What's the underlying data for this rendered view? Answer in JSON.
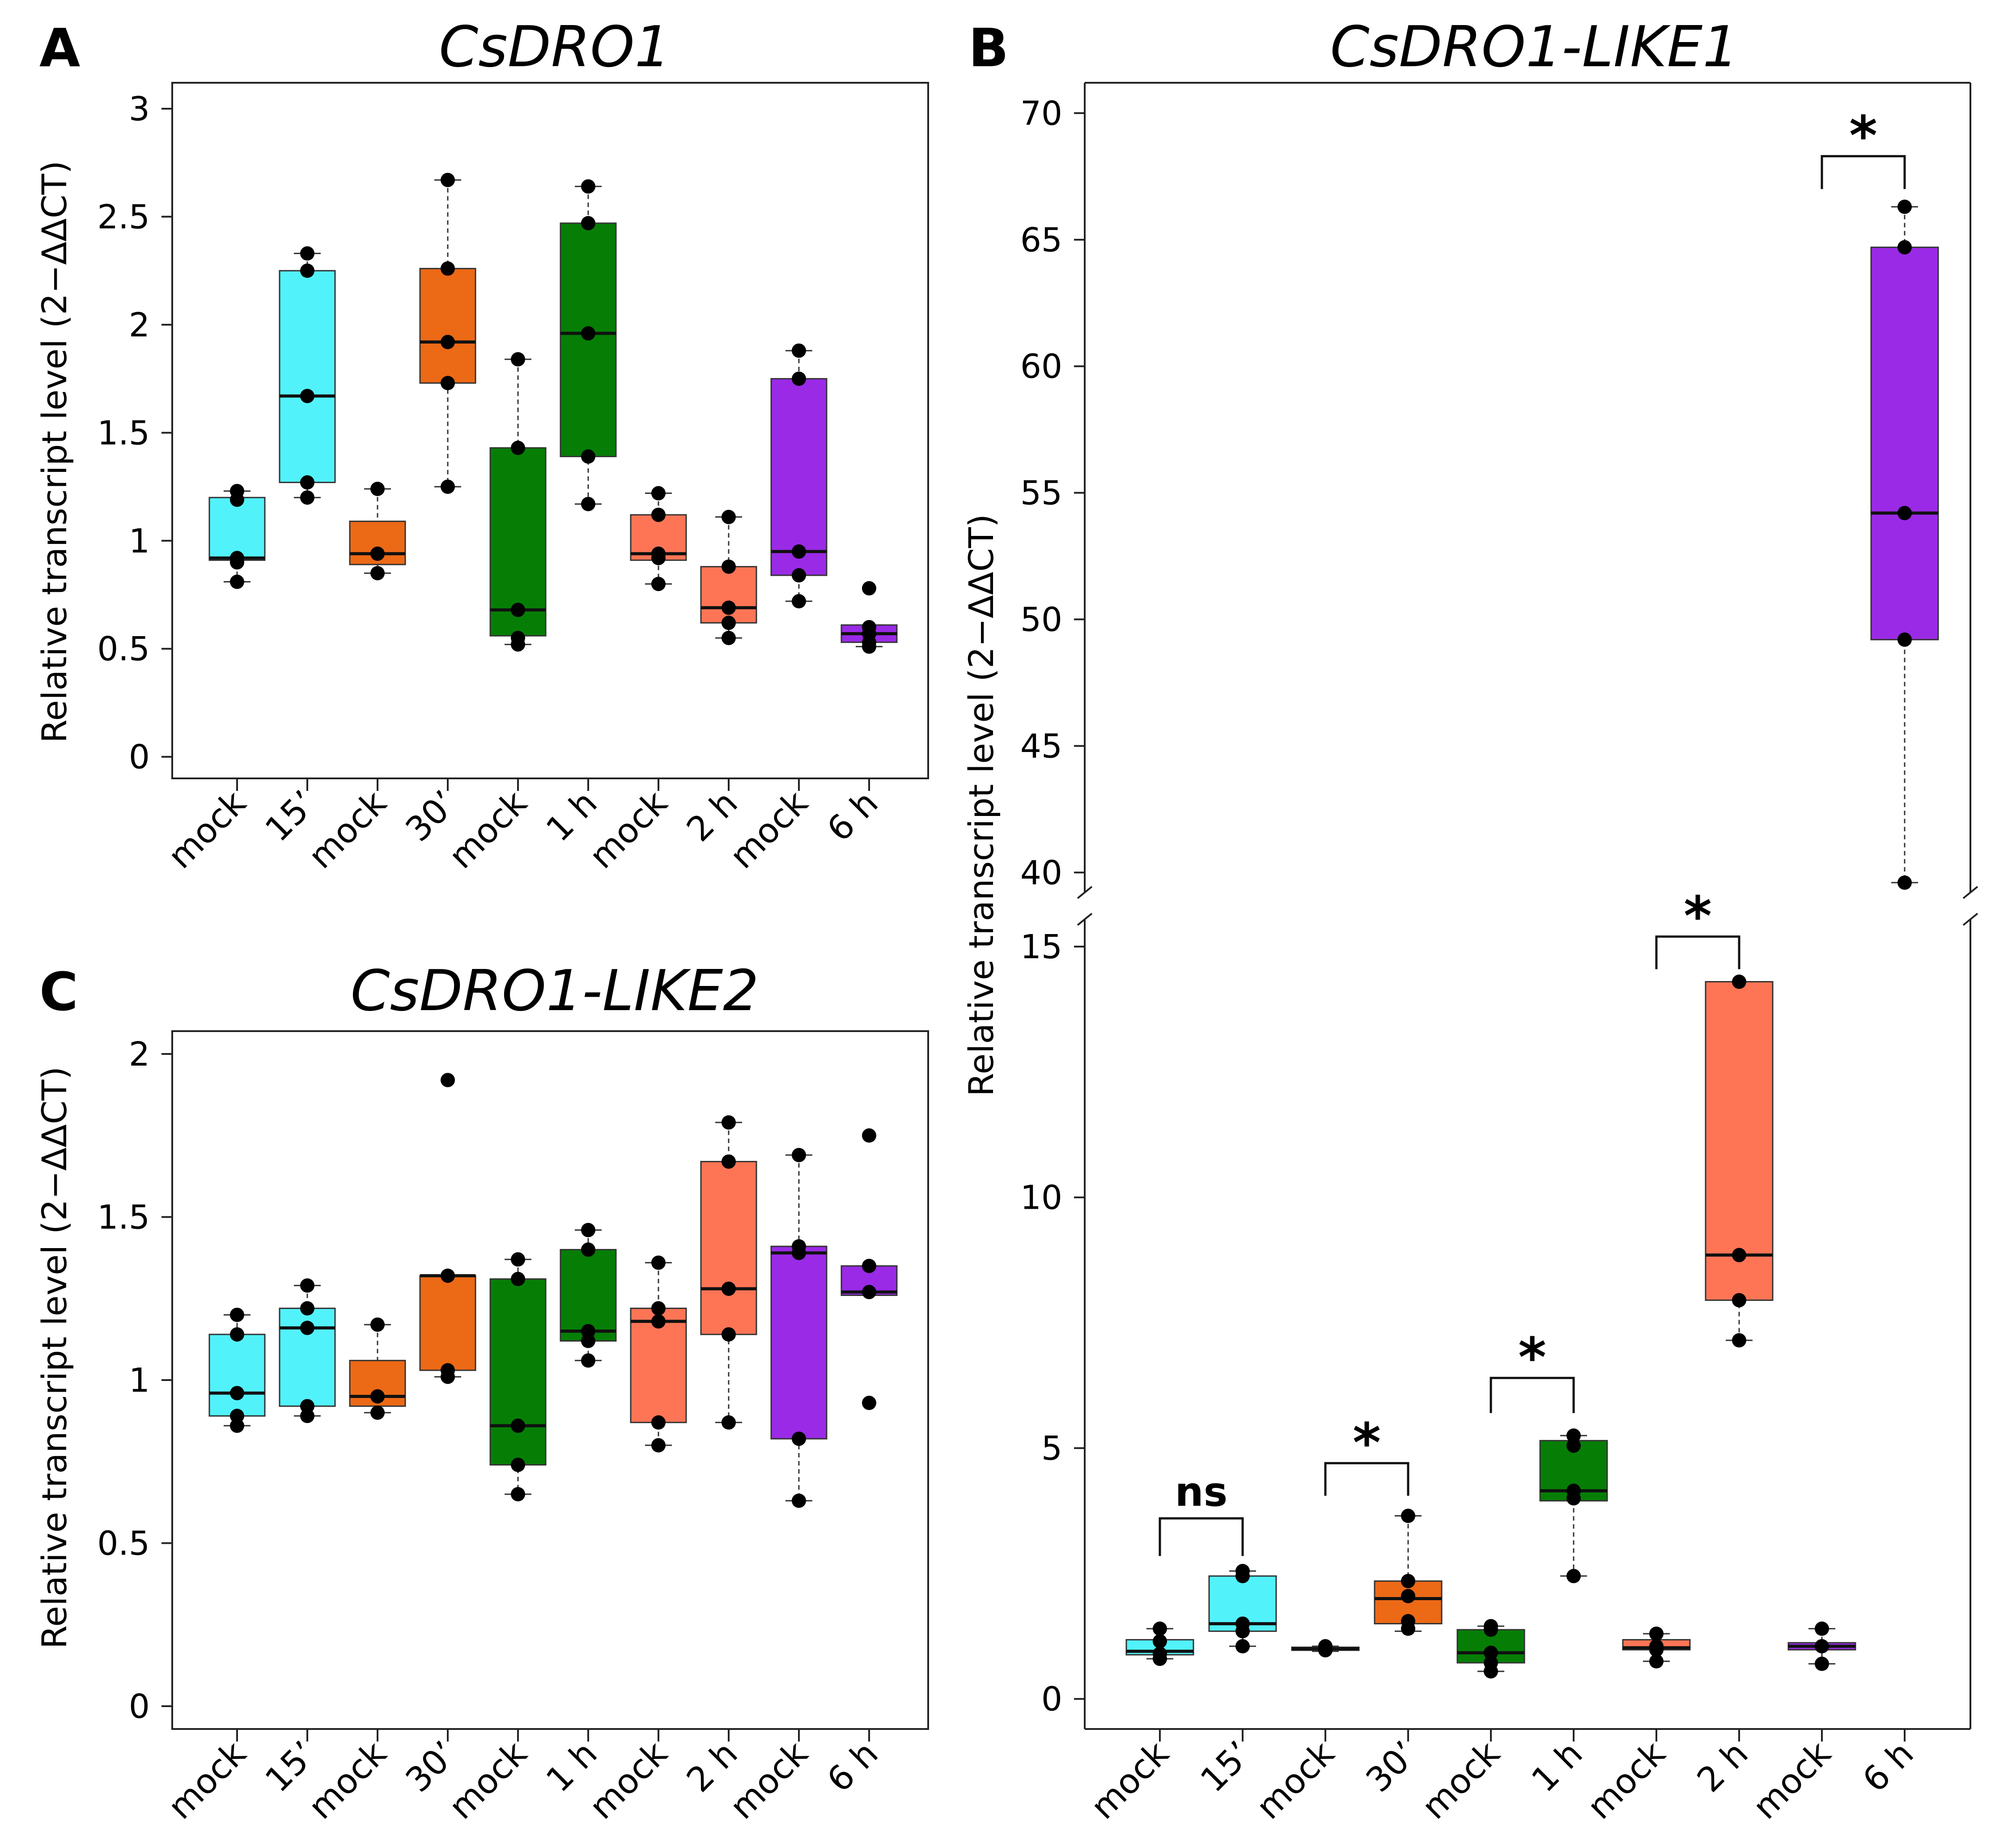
{
  "figure": {
    "panel_labels": [
      "A",
      "B",
      "C"
    ]
  },
  "colors": {
    "15’": "#52f2fb",
    "30’": "#ec6916",
    "1 h": "#067e06",
    "2 h": "#fe7556",
    "6 h": "#9a2ae6",
    "outline": "#333333",
    "point": "#000000"
  },
  "chart_data": [
    {
      "panel": "A",
      "type": "box",
      "title": "CsDRO1",
      "ylabel": "Relative transcript level (2−ΔΔCT)",
      "ylim": [
        -0.1,
        3.12
      ],
      "yticks": [
        0,
        0.5,
        1,
        1.5,
        2,
        2.5,
        3
      ],
      "ytick_labels": [
        "0",
        "0.5",
        "1",
        "1.5",
        "2",
        "2.5",
        "3"
      ],
      "categories": [
        "mock",
        "15’",
        "mock",
        "30’",
        "mock",
        "1 h",
        "mock",
        "2 h",
        "mock",
        "6 h"
      ],
      "groups": [
        "15’",
        "15’",
        "30’",
        "30’",
        "1 h",
        "1 h",
        "2 h",
        "2 h",
        "6 h",
        "6 h"
      ],
      "boxes": [
        {
          "q1": 0.91,
          "median": 0.92,
          "q3": 1.2,
          "whisker_low": 0.81,
          "whisker_high": 1.23,
          "points": [
            0.81,
            0.9,
            0.92,
            1.19,
            1.23
          ]
        },
        {
          "q1": 1.27,
          "median": 1.67,
          "q3": 2.25,
          "whisker_low": 1.2,
          "whisker_high": 2.33,
          "points": [
            1.2,
            1.27,
            1.67,
            2.25,
            2.33
          ]
        },
        {
          "q1": 0.89,
          "median": 0.94,
          "q3": 1.09,
          "whisker_low": 0.85,
          "whisker_high": 1.24,
          "points": [
            0.85,
            0.94,
            1.24
          ]
        },
        {
          "q1": 1.73,
          "median": 1.92,
          "q3": 2.26,
          "whisker_low": 1.25,
          "whisker_high": 2.67,
          "points": [
            1.25,
            1.73,
            1.92,
            2.26,
            2.67
          ]
        },
        {
          "q1": 0.56,
          "median": 0.68,
          "q3": 1.43,
          "whisker_low": 0.52,
          "whisker_high": 1.84,
          "points": [
            0.52,
            0.55,
            0.68,
            1.43,
            1.84
          ]
        },
        {
          "q1": 1.39,
          "median": 1.96,
          "q3": 2.47,
          "whisker_low": 1.17,
          "whisker_high": 2.64,
          "points": [
            1.17,
            1.39,
            1.96,
            2.47,
            2.64
          ]
        },
        {
          "q1": 0.91,
          "median": 0.94,
          "q3": 1.12,
          "whisker_low": 0.8,
          "whisker_high": 1.22,
          "points": [
            0.8,
            0.92,
            0.94,
            1.12,
            1.22
          ]
        },
        {
          "q1": 0.62,
          "median": 0.69,
          "q3": 0.88,
          "whisker_low": 0.55,
          "whisker_high": 1.11,
          "points": [
            0.55,
            0.62,
            0.69,
            0.88,
            1.11
          ]
        },
        {
          "q1": 0.84,
          "median": 0.95,
          "q3": 1.75,
          "whisker_low": 0.72,
          "whisker_high": 1.88,
          "points": [
            0.72,
            0.84,
            0.95,
            1.75,
            1.88
          ]
        },
        {
          "q1": 0.53,
          "median": 0.57,
          "q3": 0.61,
          "whisker_low": 0.51,
          "whisker_high": 0.61,
          "points": [
            0.51,
            0.53,
            0.57,
            0.6,
            0.78
          ]
        }
      ]
    },
    {
      "panel": "B",
      "type": "box",
      "title": "CsDRO1-LIKE1",
      "ylabel": "Relative transcript level (2−ΔΔCT)",
      "broken_axis": true,
      "upper_ylim": [
        39.3,
        71.2
      ],
      "upper_yticks": [
        40,
        45,
        50,
        55,
        60,
        65,
        70
      ],
      "upper_ytick_labels": [
        "40",
        "45",
        "50",
        "55",
        "60",
        "65",
        "70"
      ],
      "lower_ylim": [
        -0.6,
        15.5
      ],
      "lower_yticks": [
        0,
        5,
        10,
        15
      ],
      "lower_ytick_labels": [
        "0",
        "5",
        "10",
        "15"
      ],
      "categories": [
        "mock",
        "15’",
        "mock",
        "30’",
        "mock",
        "1 h",
        "mock",
        "2 h",
        "mock",
        "6 h"
      ],
      "groups": [
        "15’",
        "15’",
        "30’",
        "30’",
        "1 h",
        "1 h",
        "2 h",
        "2 h",
        "6 h",
        "6 h"
      ],
      "boxes": [
        {
          "q1": 0.88,
          "median": 0.95,
          "q3": 1.18,
          "whisker_low": 0.8,
          "whisker_high": 1.4,
          "points": [
            0.8,
            0.9,
            1.15,
            1.4
          ]
        },
        {
          "q1": 1.35,
          "median": 1.5,
          "q3": 2.45,
          "whisker_low": 1.05,
          "whisker_high": 2.55,
          "points": [
            1.05,
            1.35,
            1.5,
            2.45,
            2.55
          ]
        },
        {
          "q1": 0.97,
          "median": 1.0,
          "q3": 1.03,
          "whisker_low": 0.95,
          "whisker_high": 1.05,
          "points": [
            0.97,
            1.0,
            1.05
          ]
        },
        {
          "q1": 1.5,
          "median": 2.0,
          "q3": 2.35,
          "whisker_low": 1.35,
          "whisker_high": 3.65,
          "points": [
            1.4,
            1.55,
            2.05,
            2.35,
            3.65
          ]
        },
        {
          "q1": 0.72,
          "median": 0.92,
          "q3": 1.38,
          "whisker_low": 0.55,
          "whisker_high": 1.45,
          "points": [
            0.55,
            0.72,
            0.92,
            1.38,
            1.45
          ]
        },
        {
          "q1": 3.95,
          "median": 4.15,
          "q3": 5.15,
          "whisker_low": 2.45,
          "whisker_high": 5.25,
          "points": [
            2.45,
            4.0,
            4.15,
            5.05,
            5.25
          ]
        },
        {
          "q1": 0.98,
          "median": 1.02,
          "q3": 1.18,
          "whisker_low": 0.75,
          "whisker_high": 1.3,
          "points": [
            0.75,
            0.98,
            1.05,
            1.3
          ]
        },
        {
          "q1": 7.95,
          "median": 8.85,
          "q3": 14.3,
          "whisker_low": 7.15,
          "whisker_high": 14.3,
          "points": [
            7.15,
            7.95,
            8.85,
            14.3
          ]
        },
        {
          "q1": 0.98,
          "median": 1.05,
          "q3": 1.12,
          "whisker_low": 0.7,
          "whisker_high": 1.4,
          "points": [
            0.7,
            1.05,
            1.4
          ]
        },
        {
          "q1": 49.2,
          "median": 54.2,
          "q3": 64.7,
          "whisker_low": 39.6,
          "whisker_high": 66.3,
          "points": [
            39.6,
            49.2,
            54.2,
            64.7,
            66.3
          ]
        }
      ],
      "annotations": [
        {
          "pair": [
            0,
            1
          ],
          "label": "ns",
          "axis": "lower",
          "level": 3.6,
          "drop": 0.75
        },
        {
          "pair": [
            2,
            3
          ],
          "label": "*",
          "axis": "lower",
          "level": 4.7,
          "drop": 0.65
        },
        {
          "pair": [
            4,
            5
          ],
          "label": "*",
          "axis": "lower",
          "level": 6.4,
          "drop": 0.7
        },
        {
          "pair": [
            6,
            7
          ],
          "label": "*",
          "axis": "lower",
          "level": 15.2,
          "drop": 0.65
        },
        {
          "pair": [
            8,
            9
          ],
          "label": "*",
          "axis": "upper",
          "level": 68.3,
          "drop": 1.3
        }
      ]
    },
    {
      "panel": "C",
      "type": "box",
      "title": "CsDRO1-LIKE2",
      "ylabel": "Relative transcript level (2−ΔΔCT)",
      "ylim": [
        -0.07,
        2.07
      ],
      "yticks": [
        0,
        0.5,
        1,
        1.5,
        2
      ],
      "ytick_labels": [
        "0",
        "0.5",
        "1",
        "1.5",
        "2"
      ],
      "categories": [
        "mock",
        "15’",
        "mock",
        "30’",
        "mock",
        "1 h",
        "mock",
        "2 h",
        "mock",
        "6 h"
      ],
      "groups": [
        "15’",
        "15’",
        "30’",
        "30’",
        "1 h",
        "1 h",
        "2 h",
        "2 h",
        "6 h",
        "6 h"
      ],
      "boxes": [
        {
          "q1": 0.89,
          "median": 0.96,
          "q3": 1.14,
          "whisker_low": 0.86,
          "whisker_high": 1.2,
          "points": [
            0.86,
            0.89,
            0.96,
            1.14,
            1.2
          ]
        },
        {
          "q1": 0.92,
          "median": 1.16,
          "q3": 1.22,
          "whisker_low": 0.89,
          "whisker_high": 1.29,
          "points": [
            0.89,
            0.92,
            1.16,
            1.22,
            1.29
          ]
        },
        {
          "q1": 0.92,
          "median": 0.95,
          "q3": 1.06,
          "whisker_low": 0.9,
          "whisker_high": 1.17,
          "points": [
            0.9,
            0.95,
            1.17
          ]
        },
        {
          "q1": 1.03,
          "median": 1.32,
          "q3": 1.32,
          "whisker_low": 1.01,
          "whisker_high": 1.32,
          "points": [
            1.01,
            1.03,
            1.32,
            1.92
          ]
        },
        {
          "q1": 0.74,
          "median": 0.86,
          "q3": 1.31,
          "whisker_low": 0.65,
          "whisker_high": 1.37,
          "points": [
            0.65,
            0.74,
            0.86,
            1.31,
            1.37
          ]
        },
        {
          "q1": 1.12,
          "median": 1.15,
          "q3": 1.4,
          "whisker_low": 1.06,
          "whisker_high": 1.46,
          "points": [
            1.06,
            1.12,
            1.15,
            1.4,
            1.46
          ]
        },
        {
          "q1": 0.87,
          "median": 1.18,
          "q3": 1.22,
          "whisker_low": 0.8,
          "whisker_high": 1.36,
          "points": [
            0.8,
            0.87,
            1.18,
            1.22,
            1.36
          ]
        },
        {
          "q1": 1.14,
          "median": 1.28,
          "q3": 1.67,
          "whisker_low": 0.87,
          "whisker_high": 1.79,
          "points": [
            0.87,
            1.14,
            1.28,
            1.67,
            1.79
          ]
        },
        {
          "q1": 0.82,
          "median": 1.39,
          "q3": 1.41,
          "whisker_low": 0.63,
          "whisker_high": 1.69,
          "points": [
            0.63,
            0.82,
            1.39,
            1.41,
            1.69
          ]
        },
        {
          "q1": 1.26,
          "median": 1.27,
          "q3": 1.35,
          "whisker_low": 1.26,
          "whisker_high": 1.35,
          "points": [
            0.93,
            1.27,
            1.35,
            1.75
          ]
        }
      ]
    }
  ]
}
